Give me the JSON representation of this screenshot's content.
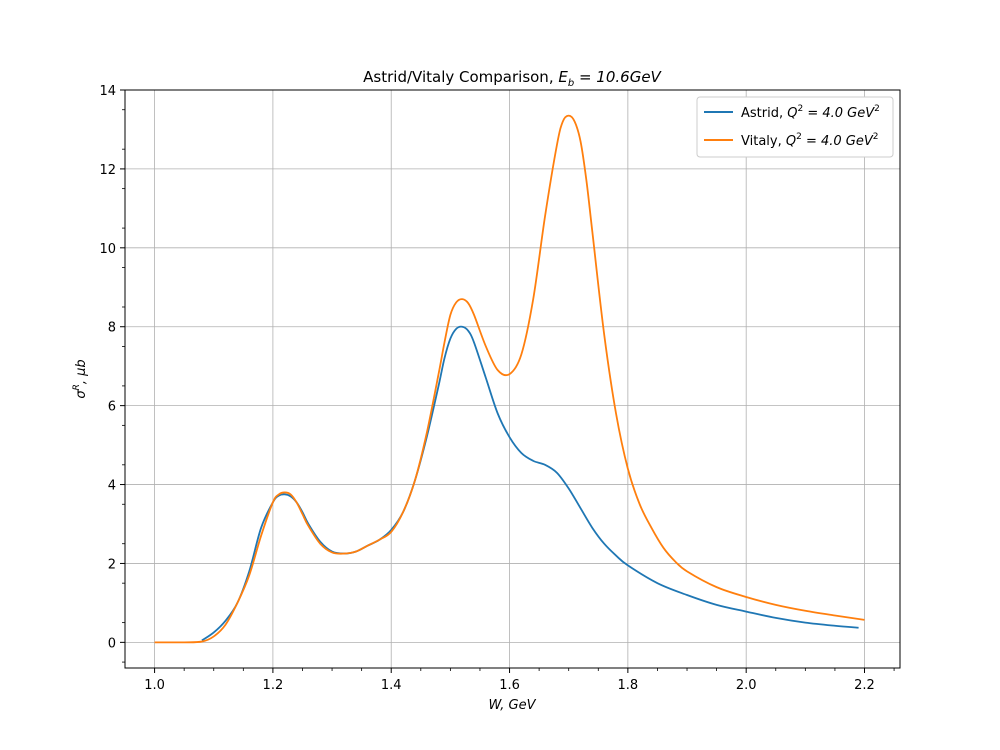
{
  "chart_data": {
    "type": "line",
    "title": "Astrid/Vitaly Comparison, E_b = 10.6GeV",
    "title_parts": {
      "prefix": "Astrid/Vitaly Comparison, ",
      "math_base": "E",
      "math_sub": "b",
      "math_rest": " = 10.6GeV"
    },
    "xlabel": "W, GeV",
    "ylabel": "σ^R, μb",
    "ylabel_parts": {
      "base": "σ",
      "sup": "R",
      "rest": ", μb"
    },
    "xlim": [
      0.95,
      2.26
    ],
    "ylim": [
      -0.65,
      14
    ],
    "xticks": [
      1.0,
      1.2,
      1.4,
      1.6,
      1.8,
      2.0,
      2.2
    ],
    "xtick_labels": [
      "1.0",
      "1.2",
      "1.4",
      "1.6",
      "1.8",
      "2.0",
      "2.2"
    ],
    "yticks": [
      0,
      2,
      4,
      6,
      8,
      10,
      12,
      14
    ],
    "ytick_labels": [
      "0",
      "2",
      "4",
      "6",
      "8",
      "10",
      "12",
      "14"
    ],
    "grid": true,
    "legend_position": "top-right",
    "series": [
      {
        "name": "Astrid, Q^2 = 4.0 GeV^2",
        "legend_parts": {
          "prefix": "Astrid, ",
          "base": "Q",
          "sup": "2",
          "mid": " = 4.0 GeV",
          "sup2": "2"
        },
        "color": "#1f77b4",
        "x": [
          1.08,
          1.1,
          1.12,
          1.14,
          1.16,
          1.18,
          1.2,
          1.21,
          1.22,
          1.23,
          1.24,
          1.25,
          1.26,
          1.28,
          1.3,
          1.32,
          1.34,
          1.36,
          1.38,
          1.4,
          1.42,
          1.44,
          1.46,
          1.48,
          1.49,
          1.5,
          1.51,
          1.52,
          1.53,
          1.54,
          1.56,
          1.58,
          1.6,
          1.62,
          1.64,
          1.66,
          1.68,
          1.7,
          1.72,
          1.74,
          1.76,
          1.78,
          1.8,
          1.85,
          1.9,
          1.95,
          2.0,
          2.05,
          2.1,
          2.15,
          2.19
        ],
        "y": [
          0.05,
          0.25,
          0.55,
          1.0,
          1.8,
          2.9,
          3.55,
          3.72,
          3.75,
          3.7,
          3.55,
          3.3,
          3.0,
          2.55,
          2.3,
          2.25,
          2.3,
          2.45,
          2.6,
          2.85,
          3.3,
          4.1,
          5.2,
          6.5,
          7.2,
          7.7,
          7.95,
          8.0,
          7.9,
          7.6,
          6.7,
          5.8,
          5.2,
          4.8,
          4.6,
          4.5,
          4.3,
          3.9,
          3.4,
          2.9,
          2.5,
          2.2,
          1.95,
          1.5,
          1.2,
          0.95,
          0.78,
          0.62,
          0.5,
          0.42,
          0.37
        ]
      },
      {
        "name": "Vitaly, Q^2 = 4.0 GeV^2",
        "legend_parts": {
          "prefix": "Vitaly, ",
          "base": "Q",
          "sup": "2",
          "mid": " = 4.0 GeV",
          "sup2": "2"
        },
        "color": "#ff7f0e",
        "x": [
          1.0,
          1.05,
          1.08,
          1.1,
          1.12,
          1.14,
          1.16,
          1.18,
          1.2,
          1.21,
          1.22,
          1.23,
          1.24,
          1.25,
          1.26,
          1.28,
          1.3,
          1.32,
          1.34,
          1.36,
          1.38,
          1.4,
          1.42,
          1.44,
          1.46,
          1.48,
          1.49,
          1.5,
          1.51,
          1.52,
          1.53,
          1.54,
          1.56,
          1.58,
          1.6,
          1.62,
          1.64,
          1.66,
          1.68,
          1.69,
          1.7,
          1.71,
          1.72,
          1.73,
          1.74,
          1.76,
          1.78,
          1.8,
          1.82,
          1.84,
          1.86,
          1.88,
          1.9,
          1.95,
          2.0,
          2.05,
          2.1,
          2.15,
          2.2
        ],
        "y": [
          0,
          0,
          0.02,
          0.15,
          0.45,
          1.0,
          1.7,
          2.7,
          3.55,
          3.75,
          3.8,
          3.75,
          3.55,
          3.25,
          2.95,
          2.5,
          2.28,
          2.25,
          2.3,
          2.45,
          2.6,
          2.8,
          3.3,
          4.1,
          5.3,
          6.8,
          7.6,
          8.3,
          8.62,
          8.7,
          8.6,
          8.3,
          7.5,
          6.9,
          6.8,
          7.3,
          8.7,
          10.8,
          12.6,
          13.2,
          13.35,
          13.2,
          12.7,
          11.7,
          10.4,
          7.8,
          5.8,
          4.4,
          3.5,
          2.9,
          2.4,
          2.05,
          1.8,
          1.4,
          1.15,
          0.95,
          0.8,
          0.68,
          0.57
        ]
      }
    ]
  }
}
